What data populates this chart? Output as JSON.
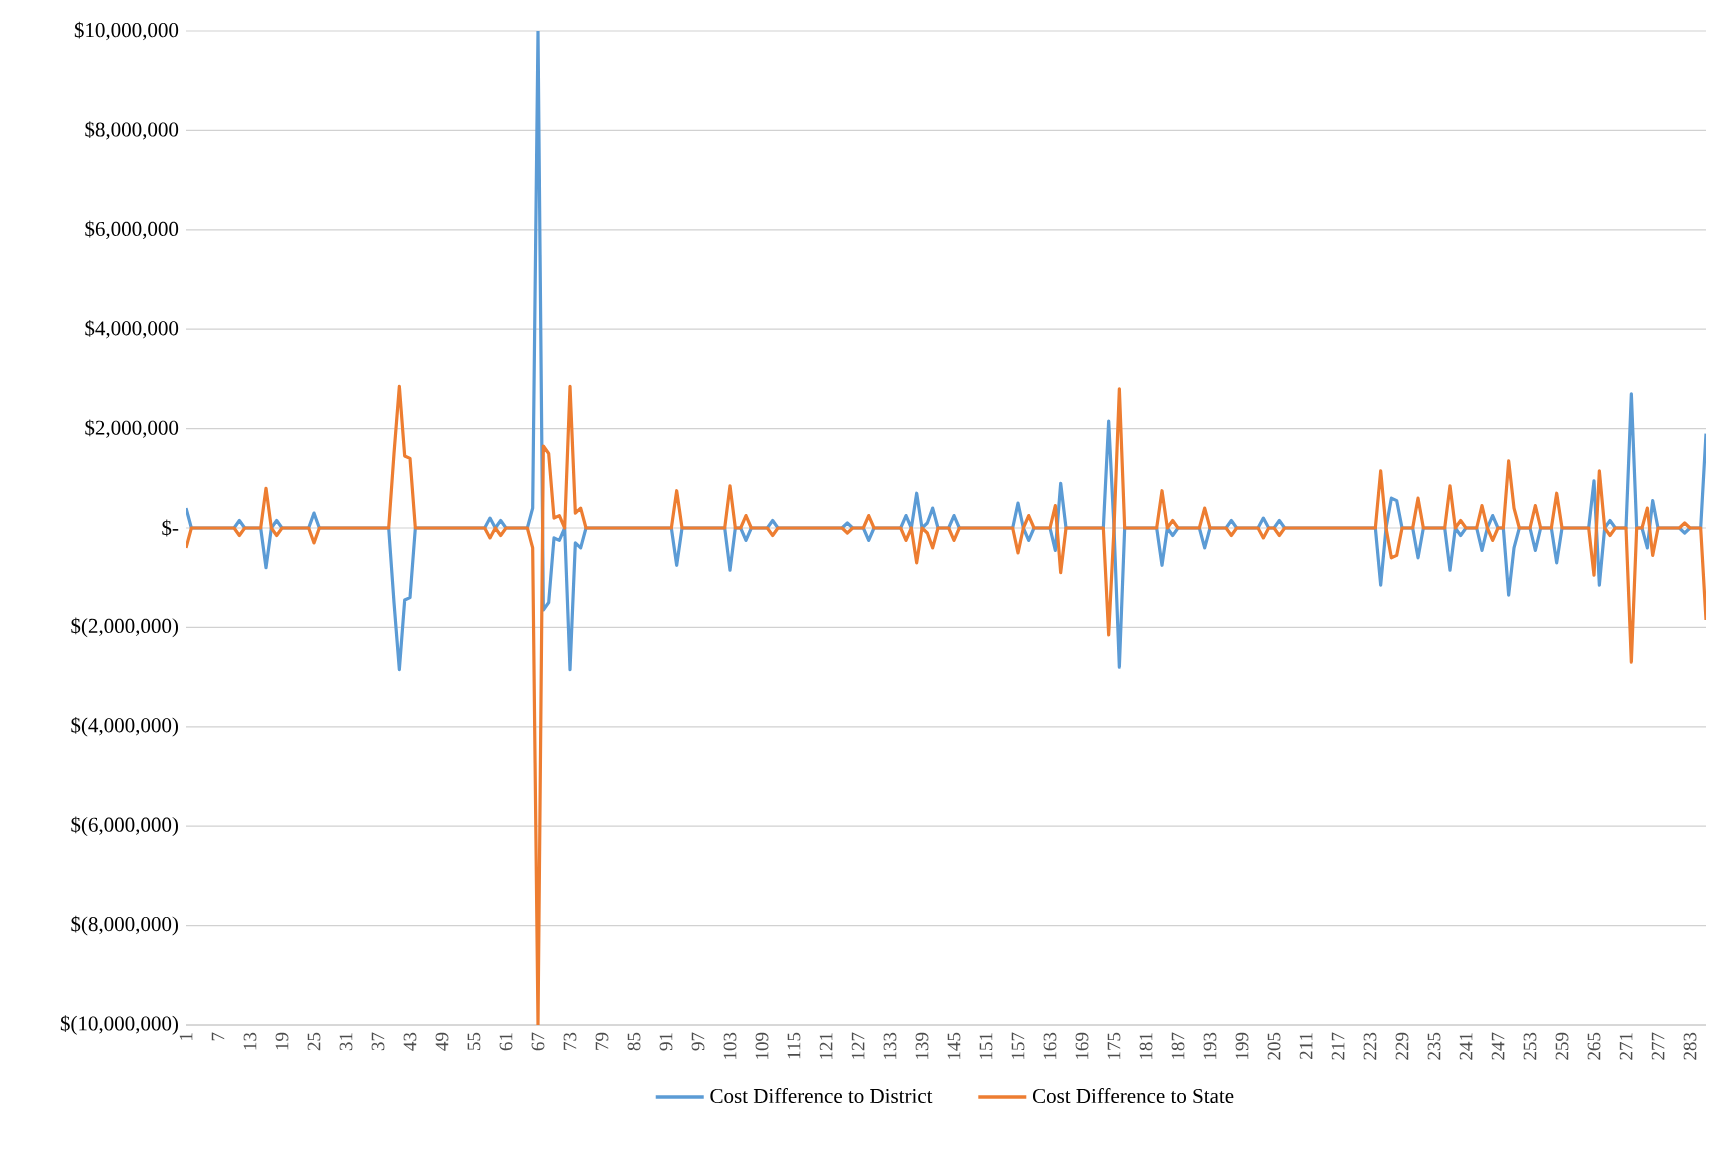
{
  "chart_data": {
    "type": "line",
    "categories": [
      "1",
      null,
      null,
      null,
      null,
      null,
      "7",
      null,
      null,
      null,
      null,
      null,
      "13",
      null,
      null,
      null,
      null,
      null,
      "19",
      null,
      null,
      null,
      null,
      null,
      "25",
      null,
      null,
      null,
      null,
      null,
      "31",
      null,
      null,
      null,
      null,
      null,
      "37",
      null,
      null,
      null,
      null,
      null,
      "43",
      null,
      null,
      null,
      null,
      null,
      "49",
      null,
      null,
      null,
      null,
      null,
      "55",
      null,
      null,
      null,
      null,
      null,
      "61",
      null,
      null,
      null,
      null,
      null,
      "67",
      null,
      null,
      null,
      null,
      null,
      "73",
      null,
      null,
      null,
      null,
      null,
      "79",
      null,
      null,
      null,
      null,
      null,
      "85",
      null,
      null,
      null,
      null,
      null,
      "91",
      null,
      null,
      null,
      null,
      null,
      "97",
      null,
      null,
      null,
      null,
      null,
      "103",
      null,
      null,
      null,
      null,
      null,
      "109",
      null,
      null,
      null,
      null,
      null,
      "115",
      null,
      null,
      null,
      null,
      null,
      "121",
      null,
      null,
      null,
      null,
      null,
      "127",
      null,
      null,
      null,
      null,
      null,
      "133",
      null,
      null,
      null,
      null,
      null,
      "139",
      null,
      null,
      null,
      null,
      null,
      "145",
      null,
      null,
      null,
      null,
      null,
      "151",
      null,
      null,
      null,
      null,
      null,
      "157",
      null,
      null,
      null,
      null,
      null,
      "163",
      null,
      null,
      null,
      null,
      null,
      "169",
      null,
      null,
      null,
      null,
      null,
      "175",
      null,
      null,
      null,
      null,
      null,
      "181",
      null,
      null,
      null,
      null,
      null,
      "187",
      null,
      null,
      null,
      null,
      null,
      "193",
      null,
      null,
      null,
      null,
      null,
      "199",
      null,
      null,
      null,
      null,
      null,
      "205",
      null,
      null,
      null,
      null,
      null,
      "211",
      null,
      null,
      null,
      null,
      null,
      "217",
      null,
      null,
      null,
      null,
      null,
      "223",
      null,
      null,
      null,
      null,
      null,
      "229",
      null,
      null,
      null,
      null,
      null,
      "235",
      null,
      null,
      null,
      null,
      null,
      "241",
      null,
      null,
      null,
      null,
      null,
      "247",
      null,
      null,
      null,
      null,
      null,
      "253",
      null,
      null,
      null,
      null,
      null,
      "259",
      null,
      null,
      null,
      null,
      null,
      "265",
      null,
      null,
      null,
      null,
      null,
      "271",
      null,
      null,
      null,
      null,
      null,
      "277",
      null,
      null,
      null,
      null,
      null,
      "283",
      null,
      null,
      null
    ],
    "series": [
      {
        "name": "Cost Difference to District",
        "color": "#5b9bd5",
        "values": [
          400000,
          0,
          0,
          0,
          0,
          0,
          0,
          0,
          0,
          0,
          150000,
          0,
          0,
          0,
          0,
          -800000,
          0,
          150000,
          0,
          0,
          0,
          0,
          0,
          0,
          300000,
          0,
          0,
          0,
          0,
          0,
          0,
          0,
          0,
          0,
          0,
          0,
          0,
          0,
          0,
          -1500000,
          -2850000,
          -1450000,
          -1400000,
          0,
          0,
          0,
          0,
          0,
          0,
          0,
          0,
          0,
          0,
          0,
          0,
          0,
          0,
          200000,
          0,
          150000,
          0,
          0,
          0,
          0,
          0,
          400000,
          10000000,
          -1650000,
          -1500000,
          -200000,
          -250000,
          0,
          -2850000,
          -300000,
          -400000,
          0,
          0,
          0,
          0,
          0,
          0,
          0,
          0,
          0,
          0,
          0,
          0,
          0,
          0,
          0,
          0,
          0,
          -750000,
          0,
          0,
          0,
          0,
          0,
          0,
          0,
          0,
          0,
          -850000,
          0,
          0,
          -250000,
          0,
          0,
          0,
          0,
          150000,
          0,
          0,
          0,
          0,
          0,
          0,
          0,
          0,
          0,
          0,
          0,
          0,
          0,
          100000,
          0,
          0,
          0,
          -250000,
          0,
          0,
          0,
          0,
          0,
          0,
          250000,
          0,
          700000,
          0,
          100000,
          400000,
          0,
          0,
          0,
          250000,
          0,
          0,
          0,
          0,
          0,
          0,
          0,
          0,
          0,
          0,
          0,
          500000,
          0,
          -250000,
          0,
          0,
          0,
          0,
          -450000,
          900000,
          0,
          0,
          0,
          0,
          0,
          0,
          0,
          0,
          2150000,
          0,
          -2800000,
          0,
          0,
          0,
          0,
          0,
          0,
          0,
          -750000,
          0,
          -150000,
          0,
          0,
          0,
          0,
          0,
          -400000,
          0,
          0,
          0,
          0,
          150000,
          0,
          0,
          0,
          0,
          0,
          200000,
          0,
          0,
          150000,
          0,
          0,
          0,
          0,
          0,
          0,
          0,
          0,
          0,
          0,
          0,
          0,
          0,
          0,
          0,
          0,
          0,
          0,
          -1150000,
          0,
          600000,
          550000,
          0,
          0,
          0,
          -600000,
          0,
          0,
          0,
          0,
          0,
          -850000,
          0,
          -150000,
          0,
          0,
          0,
          -450000,
          0,
          250000,
          0,
          0,
          -1350000,
          -400000,
          0,
          0,
          0,
          -450000,
          0,
          0,
          0,
          -700000,
          0,
          0,
          0,
          0,
          0,
          0,
          950000,
          -1150000,
          0,
          150000,
          0,
          0,
          0,
          2700000,
          0,
          0,
          -400000,
          550000,
          0,
          0,
          0,
          0,
          0,
          -100000,
          0,
          0,
          0,
          1900000
        ]
      },
      {
        "name": "Cost Difference to State",
        "color": "#ed7d31",
        "values": [
          -400000,
          0,
          0,
          0,
          0,
          0,
          0,
          0,
          0,
          0,
          -150000,
          0,
          0,
          0,
          0,
          800000,
          0,
          -150000,
          0,
          0,
          0,
          0,
          0,
          0,
          -300000,
          0,
          0,
          0,
          0,
          0,
          0,
          0,
          0,
          0,
          0,
          0,
          0,
          0,
          0,
          1500000,
          2850000,
          1450000,
          1400000,
          0,
          0,
          0,
          0,
          0,
          0,
          0,
          0,
          0,
          0,
          0,
          0,
          0,
          0,
          -200000,
          0,
          -150000,
          0,
          0,
          0,
          0,
          0,
          -400000,
          -10000000,
          1650000,
          1500000,
          200000,
          250000,
          0,
          2850000,
          300000,
          400000,
          0,
          0,
          0,
          0,
          0,
          0,
          0,
          0,
          0,
          0,
          0,
          0,
          0,
          0,
          0,
          0,
          0,
          750000,
          0,
          0,
          0,
          0,
          0,
          0,
          0,
          0,
          0,
          850000,
          0,
          0,
          250000,
          0,
          0,
          0,
          0,
          -150000,
          0,
          0,
          0,
          0,
          0,
          0,
          0,
          0,
          0,
          0,
          0,
          0,
          0,
          -100000,
          0,
          0,
          0,
          250000,
          0,
          0,
          0,
          0,
          0,
          0,
          -250000,
          0,
          -700000,
          0,
          -100000,
          -400000,
          0,
          0,
          0,
          -250000,
          0,
          0,
          0,
          0,
          0,
          0,
          0,
          0,
          0,
          0,
          0,
          -500000,
          0,
          250000,
          0,
          0,
          0,
          0,
          450000,
          -900000,
          0,
          0,
          0,
          0,
          0,
          0,
          0,
          0,
          -2150000,
          0,
          2800000,
          0,
          0,
          0,
          0,
          0,
          0,
          0,
          750000,
          0,
          150000,
          0,
          0,
          0,
          0,
          0,
          400000,
          0,
          0,
          0,
          0,
          -150000,
          0,
          0,
          0,
          0,
          0,
          -200000,
          0,
          0,
          -150000,
          0,
          0,
          0,
          0,
          0,
          0,
          0,
          0,
          0,
          0,
          0,
          0,
          0,
          0,
          0,
          0,
          0,
          0,
          1150000,
          0,
          -600000,
          -550000,
          0,
          0,
          0,
          600000,
          0,
          0,
          0,
          0,
          0,
          850000,
          0,
          150000,
          0,
          0,
          0,
          450000,
          0,
          -250000,
          0,
          0,
          1350000,
          400000,
          0,
          0,
          0,
          450000,
          0,
          0,
          0,
          700000,
          0,
          0,
          0,
          0,
          0,
          0,
          -950000,
          1150000,
          0,
          -150000,
          0,
          0,
          0,
          -2700000,
          0,
          0,
          400000,
          -550000,
          0,
          0,
          0,
          0,
          0,
          100000,
          0,
          0,
          0,
          -1850000
        ]
      }
    ],
    "ylim": [
      -10000000,
      10000000
    ],
    "yticks": [
      {
        "value": -10000000,
        "label": "$(10,000,000)"
      },
      {
        "value": -8000000,
        "label": "$(8,000,000)"
      },
      {
        "value": -6000000,
        "label": "$(6,000,000)"
      },
      {
        "value": -4000000,
        "label": "$(4,000,000)"
      },
      {
        "value": -2000000,
        "label": "$(2,000,000)"
      },
      {
        "value": 0,
        "label": "$-"
      },
      {
        "value": 2000000,
        "label": "$2,000,000"
      },
      {
        "value": 4000000,
        "label": "$4,000,000"
      },
      {
        "value": 6000000,
        "label": "$6,000,000"
      },
      {
        "value": 8000000,
        "label": "$8,000,000"
      },
      {
        "value": 10000000,
        "label": "$10,000,000"
      }
    ],
    "grid": "y",
    "legend": "bottom",
    "marker": "none",
    "line_style": "solid"
  }
}
